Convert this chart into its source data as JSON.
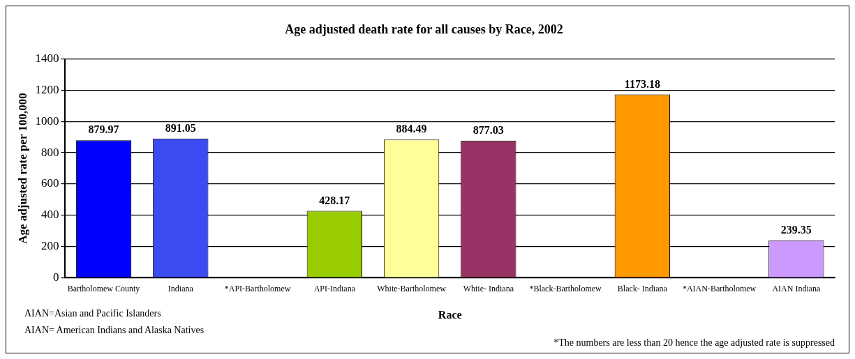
{
  "chart_data": {
    "type": "bar",
    "title": "Age adjusted death rate for all causes by Race, 2002",
    "xlabel": "Race",
    "ylabel": "Age adjusted rate per 100,000",
    "categories": [
      "Bartholomew County",
      "Indiana",
      "*API-Bartholomew",
      "API-Indiana",
      "White-Bartholomew",
      "Whtie- Indiana",
      "*Black-Bartholomew",
      "Black- Indiana",
      "*AIAN-Bartholomew",
      "AIAN Indiana"
    ],
    "values": [
      879.97,
      891.05,
      null,
      428.17,
      884.49,
      877.03,
      null,
      1173.18,
      null,
      239.35
    ],
    "colors": [
      "#0000ff",
      "#3a4cf2",
      null,
      "#99cc00",
      "#ffff99",
      "#993366",
      null,
      "#ff9900",
      null,
      "#cc99ff"
    ],
    "ylim": [
      0,
      1400
    ],
    "yticks": [
      0,
      200,
      400,
      600,
      800,
      1000,
      1200,
      1400
    ],
    "grid": "y",
    "legend": false,
    "data_labels": true,
    "annotations": [
      "AIAN=Asian and Pacific Islanders",
      "AIAN= American Indians and Alaska Natives",
      "*The numbers are less than 20 hence the age adjusted rate is suppressed"
    ]
  }
}
